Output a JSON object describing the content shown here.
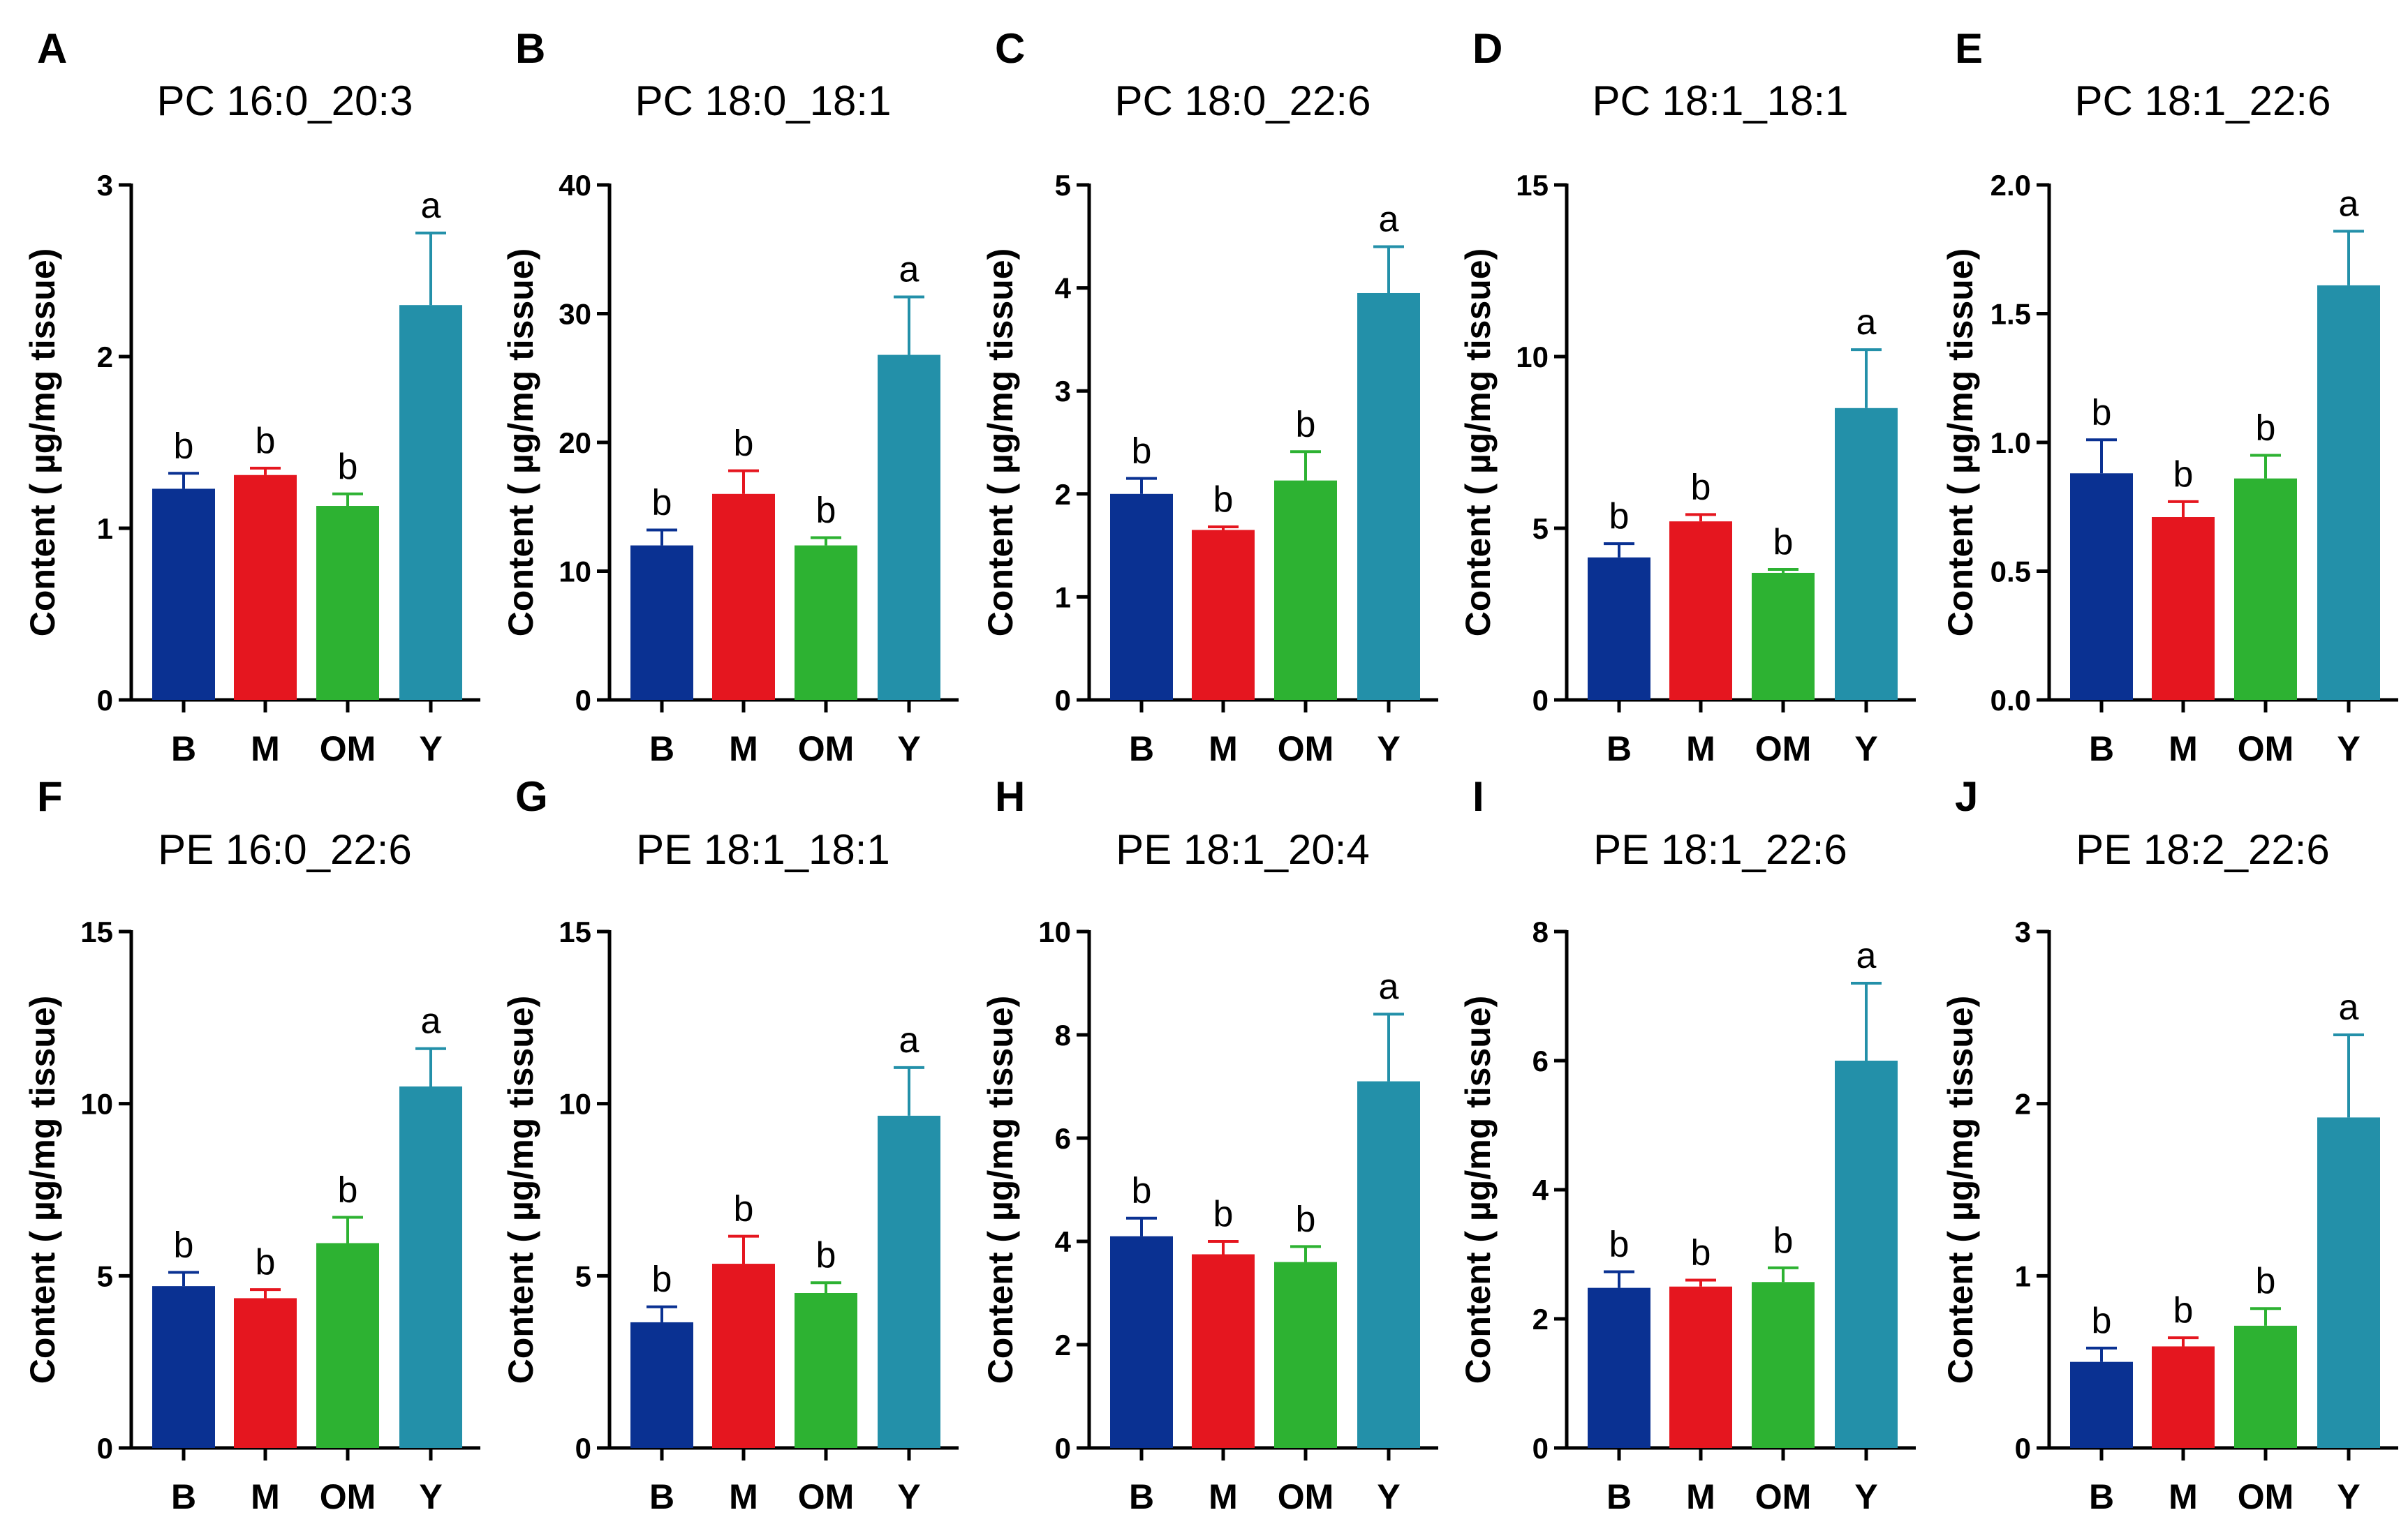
{
  "chart_data": [
    {
      "type": "bar",
      "letter": "A",
      "title": "PC 16:0_20:3",
      "ylabel": "Content ( µg/mg tissue)",
      "ylim": [
        0,
        3
      ],
      "yticks": [
        0,
        1,
        2,
        3
      ],
      "ytick_labels": [
        "0",
        "1",
        "2",
        "3"
      ],
      "categories": [
        "B",
        "M",
        "OM",
        "Y"
      ],
      "values": [
        1.23,
        1.31,
        1.13,
        2.3
      ],
      "errors": [
        0.09,
        0.04,
        0.07,
        0.42
      ],
      "sig": [
        "b",
        "b",
        "b",
        "a"
      ]
    },
    {
      "type": "bar",
      "letter": "B",
      "title": "PC 18:0_18:1",
      "ylabel": "Content ( µg/mg tissue)",
      "ylim": [
        0,
        40
      ],
      "yticks": [
        0,
        10,
        20,
        30,
        40
      ],
      "ytick_labels": [
        "0",
        "10",
        "20",
        "30",
        "40"
      ],
      "categories": [
        "B",
        "M",
        "OM",
        "Y"
      ],
      "values": [
        12.0,
        16.0,
        12.0,
        26.8
      ],
      "errors": [
        1.2,
        1.8,
        0.6,
        4.5
      ],
      "sig": [
        "b",
        "b",
        "b",
        "a"
      ]
    },
    {
      "type": "bar",
      "letter": "C",
      "title": "PC 18:0_22:6",
      "ylabel": "Content ( µg/mg tissue)",
      "ylim": [
        0,
        5
      ],
      "yticks": [
        0,
        1,
        2,
        3,
        4,
        5
      ],
      "ytick_labels": [
        "0",
        "1",
        "2",
        "3",
        "4",
        "5"
      ],
      "categories": [
        "B",
        "M",
        "OM",
        "Y"
      ],
      "values": [
        2.0,
        1.65,
        2.13,
        3.95
      ],
      "errors": [
        0.15,
        0.03,
        0.28,
        0.45
      ],
      "sig": [
        "b",
        "b",
        "b",
        "a"
      ]
    },
    {
      "type": "bar",
      "letter": "D",
      "title": "PC 18:1_18:1",
      "ylabel": "Content ( µg/mg tissue)",
      "ylim": [
        0,
        15
      ],
      "yticks": [
        0,
        5,
        10,
        15
      ],
      "ytick_labels": [
        "0",
        "5",
        "10",
        "15"
      ],
      "categories": [
        "B",
        "M",
        "OM",
        "Y"
      ],
      "values": [
        4.15,
        5.2,
        3.7,
        8.5
      ],
      "errors": [
        0.4,
        0.2,
        0.1,
        1.7
      ],
      "sig": [
        "b",
        "b",
        "b",
        "a"
      ]
    },
    {
      "type": "bar",
      "letter": "E",
      "title": "PC 18:1_22:6",
      "ylabel": "Content ( µg/mg tissue)",
      "ylim": [
        0,
        2
      ],
      "yticks": [
        0,
        0.5,
        1,
        1.5,
        2
      ],
      "ytick_labels": [
        "0.0",
        "0.5",
        "1.0",
        "1.5",
        "2.0"
      ],
      "categories": [
        "B",
        "M",
        "OM",
        "Y"
      ],
      "values": [
        0.88,
        0.71,
        0.86,
        1.61
      ],
      "errors": [
        0.13,
        0.06,
        0.09,
        0.21
      ],
      "sig": [
        "b",
        "b",
        "b",
        "a"
      ]
    },
    {
      "type": "bar",
      "letter": "F",
      "title": "PE 16:0_22:6",
      "ylabel": "Content ( µg/mg tissue)",
      "ylim": [
        0,
        15
      ],
      "yticks": [
        0,
        5,
        10,
        15
      ],
      "ytick_labels": [
        "0",
        "5",
        "10",
        "15"
      ],
      "categories": [
        "B",
        "M",
        "OM",
        "Y"
      ],
      "values": [
        4.7,
        4.35,
        5.95,
        10.5
      ],
      "errors": [
        0.4,
        0.25,
        0.75,
        1.1
      ],
      "sig": [
        "b",
        "b",
        "b",
        "a"
      ]
    },
    {
      "type": "bar",
      "letter": "G",
      "title": "PE 18:1_18:1",
      "ylabel": "Content ( µg/mg tissue)",
      "ylim": [
        0,
        15
      ],
      "yticks": [
        0,
        5,
        10,
        15
      ],
      "ytick_labels": [
        "0",
        "5",
        "10",
        "15"
      ],
      "categories": [
        "B",
        "M",
        "OM",
        "Y"
      ],
      "values": [
        3.65,
        5.35,
        4.5,
        9.65
      ],
      "errors": [
        0.45,
        0.8,
        0.3,
        1.4
      ],
      "sig": [
        "b",
        "b",
        "b",
        "a"
      ]
    },
    {
      "type": "bar",
      "letter": "H",
      "title": "PE 18:1_20:4",
      "ylabel": "Content ( µg/mg tissue)",
      "ylim": [
        0,
        10
      ],
      "yticks": [
        0,
        2,
        4,
        6,
        8,
        10
      ],
      "ytick_labels": [
        "0",
        "2",
        "4",
        "6",
        "8",
        "10"
      ],
      "categories": [
        "B",
        "M",
        "OM",
        "Y"
      ],
      "values": [
        4.1,
        3.75,
        3.6,
        7.1
      ],
      "errors": [
        0.35,
        0.25,
        0.3,
        1.3
      ],
      "sig": [
        "b",
        "b",
        "b",
        "a"
      ]
    },
    {
      "type": "bar",
      "letter": "I",
      "title": "PE 18:1_22:6",
      "ylabel": "Content ( µg/mg tissue)",
      "ylim": [
        0,
        8
      ],
      "yticks": [
        0,
        2,
        4,
        6,
        8
      ],
      "ytick_labels": [
        "0",
        "2",
        "4",
        "6",
        "8"
      ],
      "categories": [
        "B",
        "M",
        "OM",
        "Y"
      ],
      "values": [
        2.48,
        2.5,
        2.57,
        6.0
      ],
      "errors": [
        0.25,
        0.1,
        0.22,
        1.2
      ],
      "sig": [
        "b",
        "b",
        "b",
        "a"
      ]
    },
    {
      "type": "bar",
      "letter": "J",
      "title": "PE 18:2_22:6",
      "ylabel": "Content ( µg/mg tissue)",
      "ylim": [
        0,
        3
      ],
      "yticks": [
        0,
        1,
        2,
        3
      ],
      "ytick_labels": [
        "0",
        "1",
        "2",
        "3"
      ],
      "categories": [
        "B",
        "M",
        "OM",
        "Y"
      ],
      "values": [
        0.5,
        0.59,
        0.71,
        1.92
      ],
      "errors": [
        0.08,
        0.05,
        0.1,
        0.48
      ],
      "sig": [
        "b",
        "b",
        "b",
        "a"
      ]
    }
  ],
  "colors": {
    "B": "#0a3192",
    "M": "#e5161f",
    "OM": "#2db232",
    "Y": "#2390a9"
  }
}
